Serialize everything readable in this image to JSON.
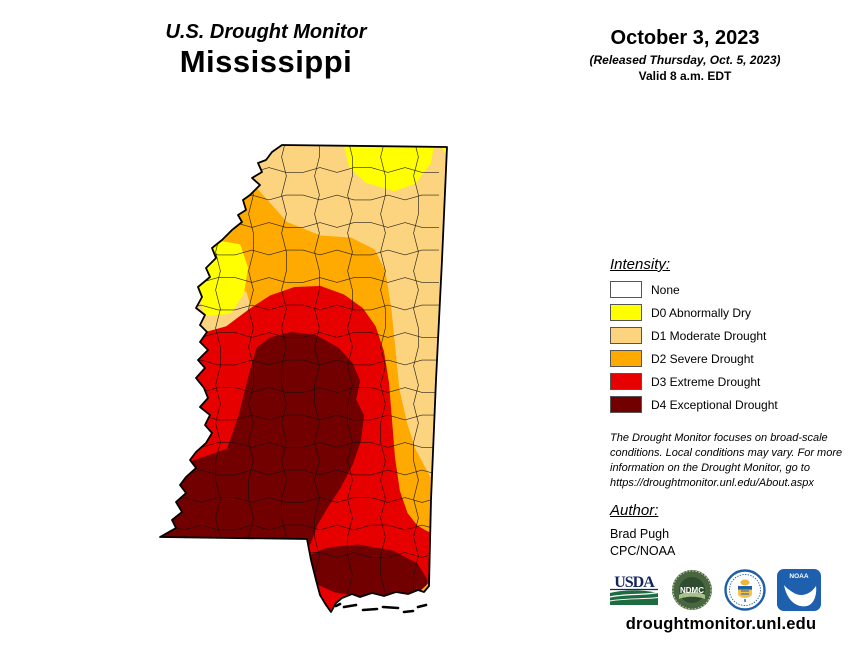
{
  "header": {
    "title": "U.S. Drought Monitor",
    "state": "Mississippi",
    "date": "October 3, 2023",
    "released": "(Released Thursday, Oct. 5, 2023)",
    "valid": "Valid 8 a.m. EDT"
  },
  "legend": {
    "heading": "Intensity:",
    "items": [
      {
        "label": "None",
        "color": "#FFFFFF"
      },
      {
        "label": "D0 Abnormally Dry",
        "color": "#FFFF00"
      },
      {
        "label": "D1 Moderate Drought",
        "color": "#FCD37F"
      },
      {
        "label": "D2 Severe Drought",
        "color": "#FFAA00"
      },
      {
        "label": "D3 Extreme Drought",
        "color": "#E60000"
      },
      {
        "label": "D4 Exceptional Drought",
        "color": "#730000"
      }
    ]
  },
  "notes": {
    "disclaimer": "The Drought Monitor focuses on broad-scale conditions. Local conditions may vary. For more information on the Drought Monitor, go to https://droughtmonitor.unl.edu/About.aspx"
  },
  "author": {
    "heading": "Author:",
    "name": "Brad Pugh",
    "org": "CPC/NOAA"
  },
  "logos": {
    "usda": "USDA",
    "ndmc": "NDMC",
    "noaa": "NOAA"
  },
  "footer": {
    "url": "droughtmonitor.unl.edu"
  },
  "map": {
    "region": "Mississippi",
    "levels_shown": [
      "D0",
      "D1",
      "D2",
      "D3",
      "D4"
    ]
  }
}
